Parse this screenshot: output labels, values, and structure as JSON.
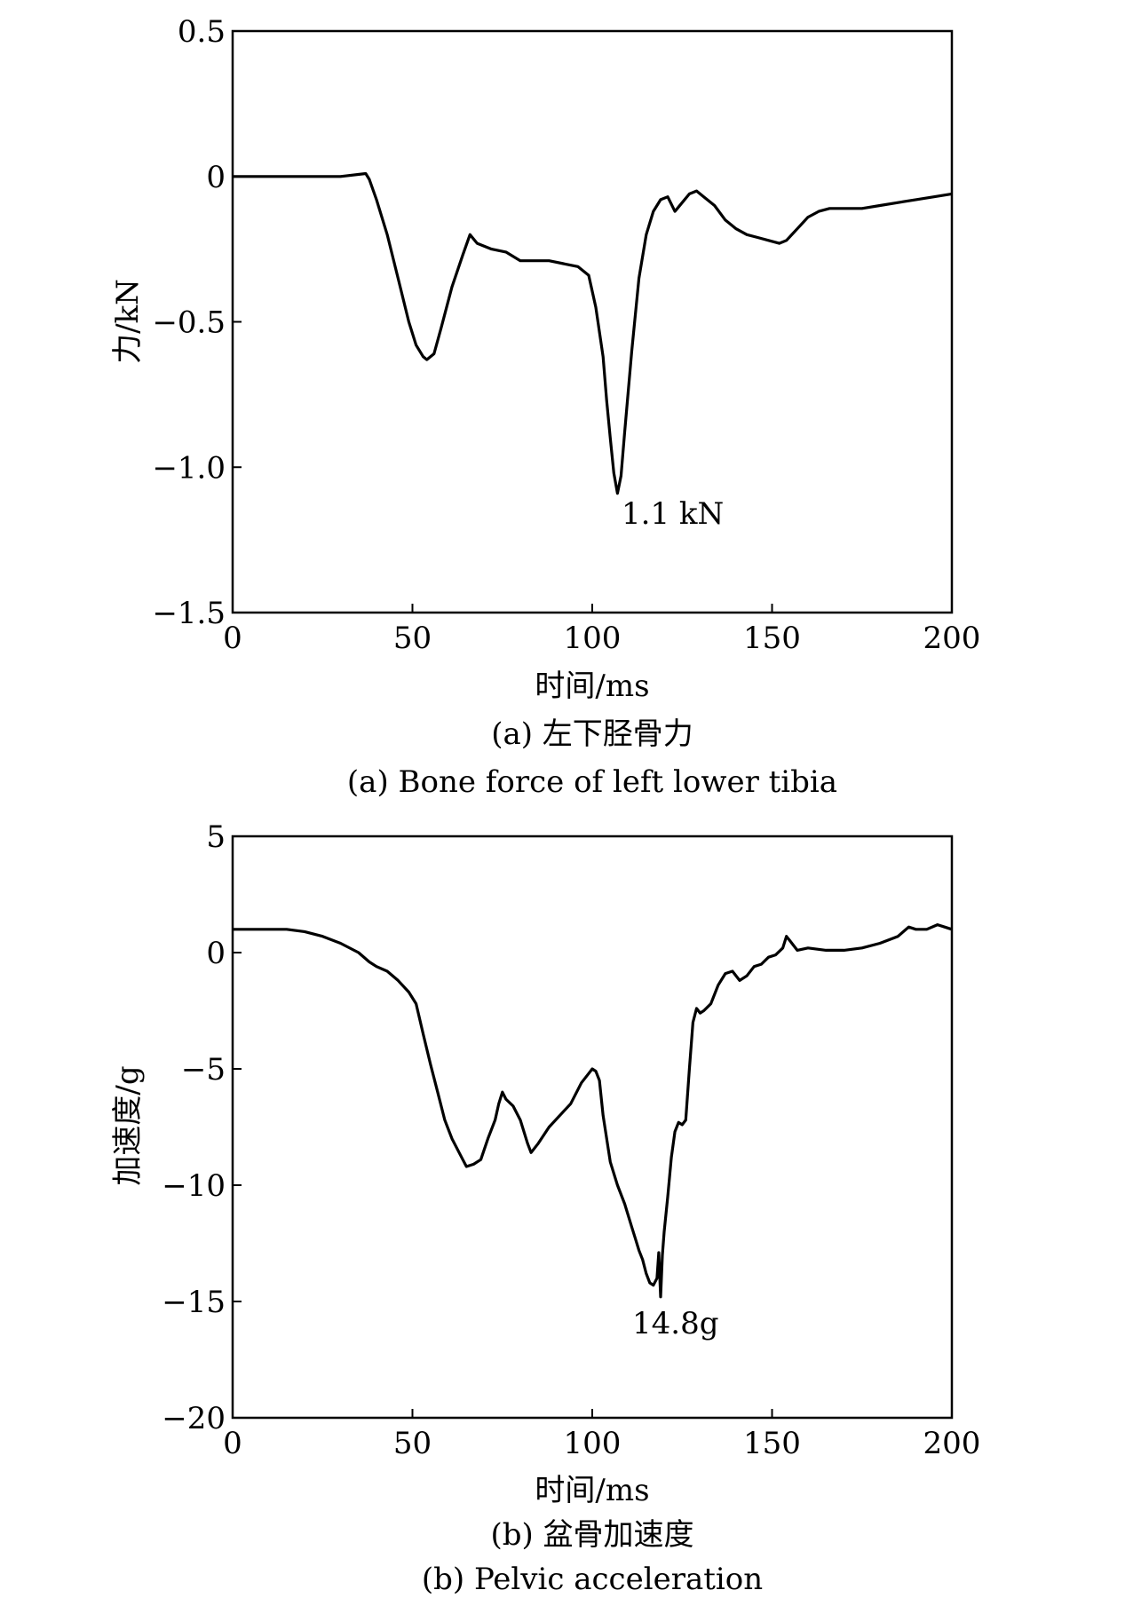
{
  "chart_data": [
    {
      "type": "line",
      "xlabel": "时间/ms",
      "ylabel": "力/kN",
      "xlim": [
        0,
        200
      ],
      "ylim": [
        -1.5,
        0.5
      ],
      "xticks": [
        "0",
        "50",
        "100",
        "150",
        "200"
      ],
      "yticks": [
        "0.5",
        "0",
        "−0.5",
        "−1.0",
        "−1.5"
      ],
      "xtick_values": [
        0,
        50,
        100,
        150,
        200
      ],
      "ytick_values": [
        0.5,
        0,
        -0.5,
        -1.0,
        -1.5
      ],
      "grid": false,
      "caption_cn": "(a) 左下胫骨力",
      "caption_en": "(a) Bone force of left lower tibia",
      "annotation": {
        "text": "1.1 kN",
        "x": 107,
        "y": -1.09
      },
      "series": [
        {
          "x": [
            0,
            10,
            20,
            30,
            37,
            38,
            40,
            43,
            46,
            49,
            51,
            53,
            54,
            56,
            58,
            61,
            64,
            66,
            68,
            72,
            76,
            80,
            84,
            88,
            92,
            96,
            99,
            101,
            103,
            104,
            105,
            106,
            107,
            108,
            109,
            111,
            113,
            115,
            117,
            119,
            121,
            123,
            125,
            127,
            129,
            131,
            134,
            137,
            140,
            143,
            146,
            149,
            152,
            154,
            157,
            160,
            163,
            166,
            170,
            175,
            180,
            185,
            190,
            195,
            200
          ],
          "y": [
            0,
            0,
            0,
            0,
            0.01,
            -0.01,
            -0.08,
            -0.2,
            -0.35,
            -0.5,
            -0.58,
            -0.62,
            -0.63,
            -0.61,
            -0.52,
            -0.38,
            -0.27,
            -0.2,
            -0.23,
            -0.25,
            -0.26,
            -0.29,
            -0.29,
            -0.29,
            -0.3,
            -0.31,
            -0.34,
            -0.45,
            -0.62,
            -0.77,
            -0.9,
            -1.02,
            -1.09,
            -1.03,
            -0.88,
            -0.6,
            -0.35,
            -0.2,
            -0.12,
            -0.08,
            -0.07,
            -0.12,
            -0.09,
            -0.06,
            -0.05,
            -0.07,
            -0.1,
            -0.15,
            -0.18,
            -0.2,
            -0.21,
            -0.22,
            -0.23,
            -0.22,
            -0.18,
            -0.14,
            -0.12,
            -0.11,
            -0.11,
            -0.11,
            -0.1,
            -0.09,
            -0.08,
            -0.07,
            -0.06
          ]
        }
      ]
    },
    {
      "type": "line",
      "xlabel": "时间/ms",
      "ylabel": "加速度/g",
      "xlim": [
        0,
        200
      ],
      "ylim": [
        -20,
        5
      ],
      "xticks": [
        "0",
        "50",
        "100",
        "150",
        "200"
      ],
      "yticks": [
        "5",
        "0",
        "−5",
        "−10",
        "−15",
        "−20"
      ],
      "xtick_values": [
        0,
        50,
        100,
        150,
        200
      ],
      "ytick_values": [
        5,
        0,
        -5,
        -10,
        -15,
        -20
      ],
      "grid": false,
      "caption_cn": "(b) 盆骨加速度",
      "caption_en": "(b) Pelvic acceleration",
      "annotation": {
        "text": "14.8g",
        "x": 120,
        "y": -14.8
      },
      "series": [
        {
          "x": [
            0,
            10,
            15,
            20,
            25,
            30,
            35,
            38,
            40,
            43,
            46,
            49,
            51,
            53,
            55,
            57,
            59,
            61,
            63,
            64,
            65,
            67,
            69,
            71,
            73,
            74,
            75,
            76,
            78,
            80,
            82,
            83,
            85,
            88,
            91,
            94,
            97,
            99,
            100,
            101,
            102,
            103,
            105,
            107,
            109,
            111,
            112,
            113,
            114,
            115,
            116,
            117,
            118,
            118.5,
            119,
            119.5,
            120,
            121,
            122,
            123,
            124,
            125,
            126,
            127,
            128,
            129,
            130,
            131,
            133,
            135,
            137,
            139,
            141,
            143,
            145,
            147,
            149,
            151,
            153,
            154,
            155,
            157,
            160,
            165,
            170,
            175,
            180,
            185,
            188,
            190,
            193,
            196,
            198,
            200
          ],
          "y": [
            1,
            1,
            1,
            0.9,
            0.7,
            0.4,
            0,
            -0.4,
            -0.6,
            -0.8,
            -1.2,
            -1.7,
            -2.2,
            -3.5,
            -4.8,
            -6,
            -7.2,
            -8,
            -8.6,
            -8.9,
            -9.2,
            -9.1,
            -8.9,
            -8,
            -7.2,
            -6.5,
            -6,
            -6.3,
            -6.6,
            -7.2,
            -8.2,
            -8.6,
            -8.2,
            -7.5,
            -7,
            -6.5,
            -5.6,
            -5.2,
            -5,
            -5.1,
            -5.5,
            -7,
            -9,
            -10,
            -10.8,
            -11.8,
            -12.3,
            -12.8,
            -13.2,
            -13.8,
            -14.2,
            -14.3,
            -14,
            -12.9,
            -14.8,
            -13,
            -12,
            -10.5,
            -8.8,
            -7.7,
            -7.3,
            -7.4,
            -7.2,
            -5,
            -3,
            -2.4,
            -2.6,
            -2.5,
            -2.2,
            -1.4,
            -0.9,
            -0.8,
            -1.2,
            -1,
            -0.6,
            -0.5,
            -0.2,
            -0.1,
            0.2,
            0.7,
            0.5,
            0.1,
            0.2,
            0.1,
            0.1,
            0.2,
            0.4,
            0.7,
            1.1,
            1,
            1,
            1.2,
            1.1,
            1
          ]
        }
      ]
    }
  ]
}
